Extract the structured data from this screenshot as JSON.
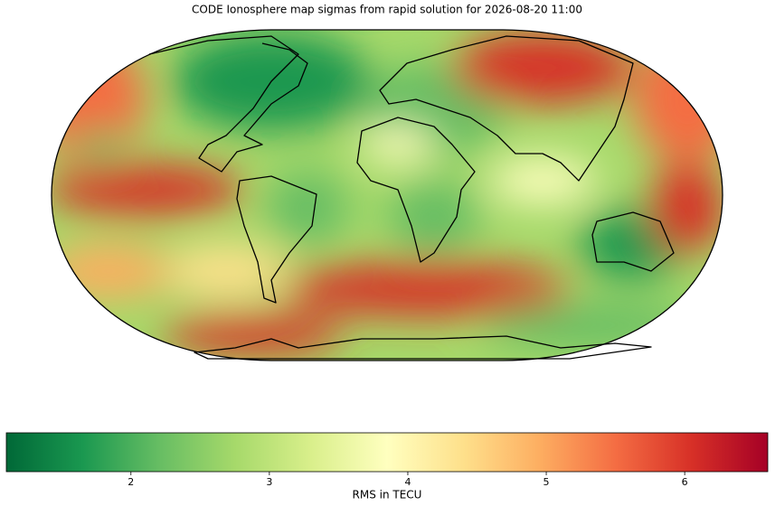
{
  "title": "CODE Ionosphere map sigmas from rapid solution for 2026-08-20 11:00",
  "colorbar": {
    "label": "RMS in TECU",
    "lim": [
      1.1,
      6.6
    ],
    "ticks": [
      2,
      3,
      4,
      5,
      6
    ],
    "colors": [
      "#006837",
      "#1a9850",
      "#66bd63",
      "#a6d96a",
      "#d9ef8b",
      "#ffffbf",
      "#fee08b",
      "#fdae61",
      "#f46d43",
      "#d73027",
      "#a50026"
    ]
  }
}
